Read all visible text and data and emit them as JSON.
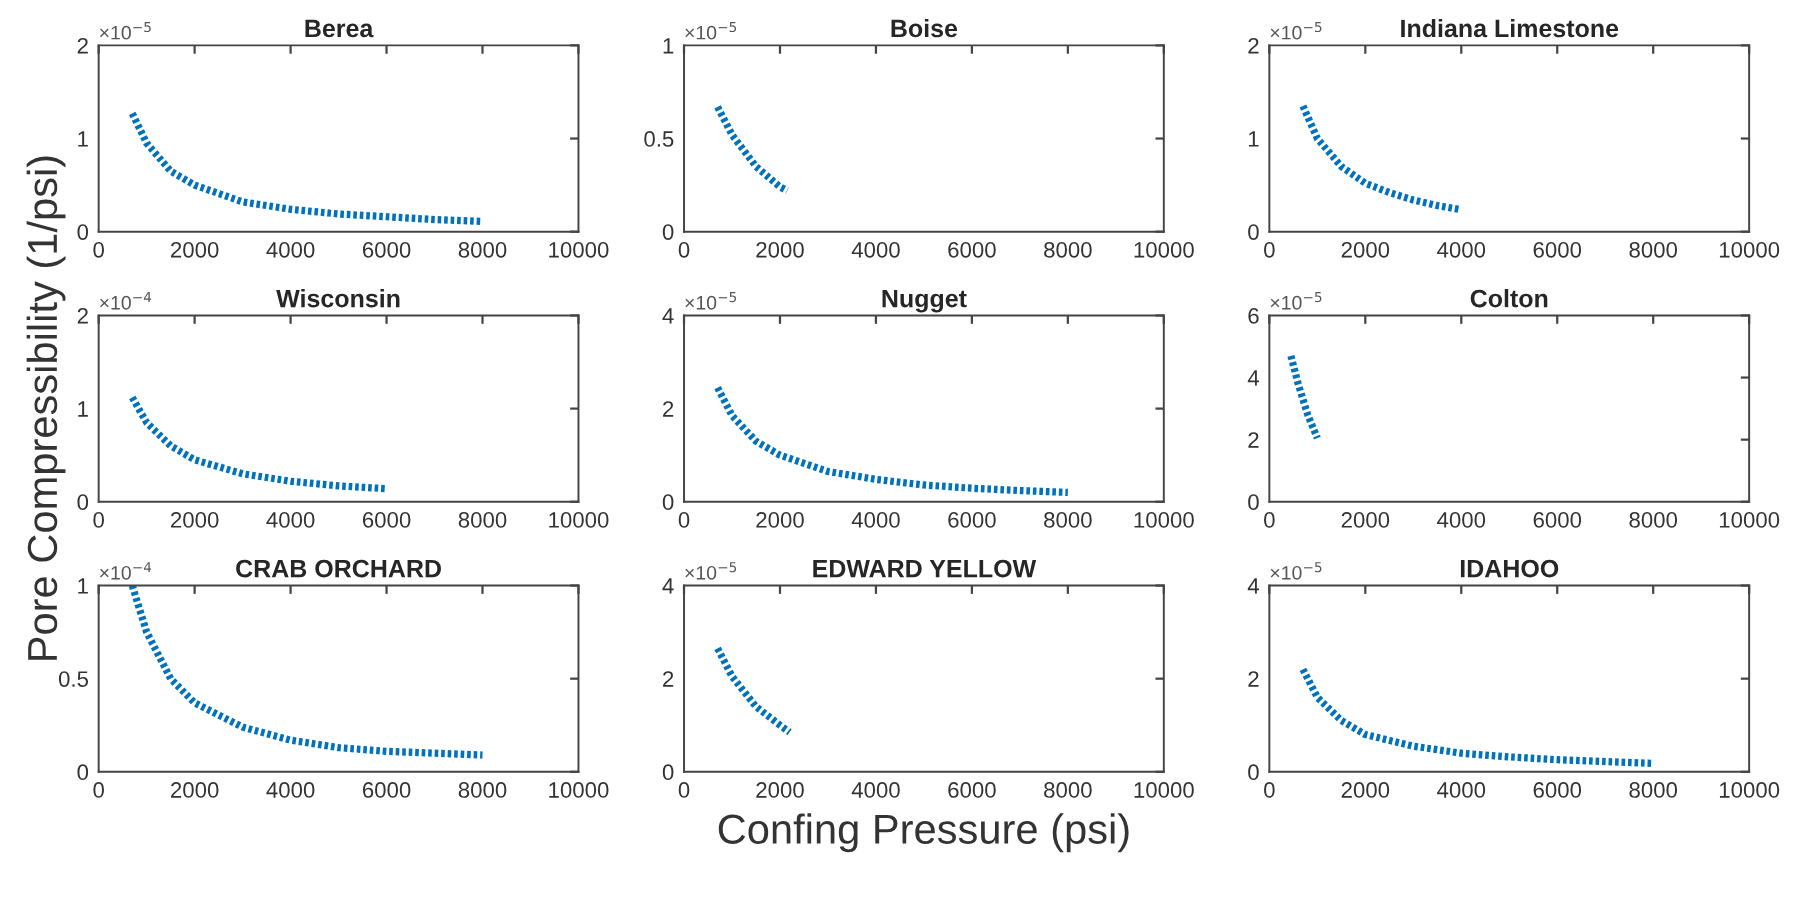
{
  "chart_data": [
    {
      "type": "line",
      "title": "Berea",
      "annotations": [
        "×10$^{−5}$"
      ],
      "xlim": [
        0,
        10000
      ],
      "xticks": [
        0,
        2000,
        4000,
        6000,
        8000,
        10000
      ],
      "ylim": [
        0,
        2
      ],
      "yticks": [
        0,
        1,
        2
      ],
      "line_style": "dotted",
      "grid": false,
      "series": [
        {
          "color": "#0072bd",
          "x": [
            700,
            1000,
            1500,
            2000,
            3000,
            4000,
            5000,
            6000,
            7000,
            8000
          ],
          "values": [
            1.27,
            0.95,
            0.65,
            0.5,
            0.32,
            0.24,
            0.19,
            0.16,
            0.13,
            0.11
          ]
        }
      ]
    },
    {
      "type": "line",
      "title": "Boise",
      "annotations": [
        "×10$^{−5}$"
      ],
      "xlim": [
        0,
        10000
      ],
      "xticks": [
        0,
        2000,
        4000,
        6000,
        8000,
        10000
      ],
      "ylim": [
        0,
        1
      ],
      "yticks": [
        0,
        0.5,
        1
      ],
      "line_style": "dotted",
      "grid": false,
      "series": [
        {
          "color": "#0072bd",
          "x": [
            700,
            1000,
            1500,
            2000,
            2150
          ],
          "values": [
            0.67,
            0.52,
            0.35,
            0.24,
            0.22
          ]
        }
      ]
    },
    {
      "type": "line",
      "title": "Indiana Limestone",
      "annotations": [
        "×10$^{−5}$"
      ],
      "xlim": [
        0,
        10000
      ],
      "xticks": [
        0,
        2000,
        4000,
        6000,
        8000,
        10000
      ],
      "ylim": [
        0,
        2
      ],
      "yticks": [
        0,
        1,
        2
      ],
      "line_style": "dotted",
      "grid": false,
      "series": [
        {
          "color": "#0072bd",
          "x": [
            700,
            1000,
            1500,
            2000,
            2500,
            3000,
            3500,
            3950
          ],
          "values": [
            1.35,
            1.0,
            0.7,
            0.52,
            0.42,
            0.34,
            0.28,
            0.24
          ]
        }
      ]
    },
    {
      "type": "line",
      "title": "Wisconsin",
      "ylabel": "Pore Compressibility (1/psi)",
      "annotations": [
        "×10$^{−4}$"
      ],
      "xlim": [
        0,
        10000
      ],
      "xticks": [
        0,
        2000,
        4000,
        6000,
        8000,
        10000
      ],
      "ylim": [
        0,
        2
      ],
      "yticks": [
        0,
        1,
        2
      ],
      "line_style": "dotted",
      "grid": false,
      "series": [
        {
          "color": "#0072bd",
          "x": [
            700,
            1000,
            1500,
            2000,
            3000,
            4000,
            5000,
            6000
          ],
          "values": [
            1.12,
            0.85,
            0.6,
            0.45,
            0.3,
            0.22,
            0.17,
            0.14
          ]
        }
      ]
    },
    {
      "type": "line",
      "title": "Nugget",
      "annotations": [
        "×10$^{−5}$"
      ],
      "xlim": [
        0,
        10000
      ],
      "xticks": [
        0,
        2000,
        4000,
        6000,
        8000,
        10000
      ],
      "ylim": [
        0,
        4
      ],
      "yticks": [
        0,
        2,
        4
      ],
      "line_style": "dotted",
      "grid": false,
      "series": [
        {
          "color": "#0072bd",
          "x": [
            700,
            1000,
            1500,
            2000,
            3000,
            4000,
            5000,
            6000,
            7000,
            8000
          ],
          "values": [
            2.45,
            1.85,
            1.3,
            1.0,
            0.65,
            0.48,
            0.36,
            0.29,
            0.24,
            0.2
          ]
        }
      ]
    },
    {
      "type": "line",
      "title": "Colton",
      "annotations": [
        "×10$^{−5}$"
      ],
      "xlim": [
        0,
        10000
      ],
      "xticks": [
        0,
        2000,
        4000,
        6000,
        8000,
        10000
      ],
      "ylim": [
        0,
        6
      ],
      "yticks": [
        0,
        2,
        4,
        6
      ],
      "line_style": "dotted",
      "grid": false,
      "series": [
        {
          "color": "#0072bd",
          "x": [
            450,
            600,
            800,
            1000
          ],
          "values": [
            4.7,
            3.8,
            2.8,
            2.05
          ]
        }
      ]
    },
    {
      "type": "line",
      "title": "CRAB ORCHARD",
      "annotations": [
        "×10$^{−4}$"
      ],
      "xlim": [
        0,
        10000
      ],
      "xticks": [
        0,
        2000,
        4000,
        6000,
        8000,
        10000
      ],
      "ylim": [
        0,
        1
      ],
      "yticks": [
        0,
        0.5,
        1
      ],
      "line_style": "dotted",
      "grid": false,
      "series": [
        {
          "color": "#0072bd",
          "x": [
            700,
            1000,
            1500,
            2000,
            3000,
            4000,
            5000,
            6000,
            7000,
            8000
          ],
          "values": [
            1.0,
            0.75,
            0.5,
            0.37,
            0.24,
            0.17,
            0.13,
            0.11,
            0.1,
            0.09
          ]
        }
      ]
    },
    {
      "type": "line",
      "title": "EDWARD YELLOW",
      "xlabel": "Confing Pressure (psi)",
      "annotations": [
        "×10$^{−5}$"
      ],
      "xlim": [
        0,
        10000
      ],
      "xticks": [
        0,
        2000,
        4000,
        6000,
        8000,
        10000
      ],
      "ylim": [
        0,
        4
      ],
      "yticks": [
        0,
        2,
        4
      ],
      "line_style": "dotted",
      "grid": false,
      "series": [
        {
          "color": "#0072bd",
          "x": [
            700,
            1000,
            1500,
            2000,
            2200
          ],
          "values": [
            2.65,
            2.05,
            1.4,
            1.0,
            0.85
          ]
        }
      ]
    },
    {
      "type": "line",
      "title": "IDAHOO",
      "annotations": [
        "×10$^{−5}$"
      ],
      "xlim": [
        0,
        10000
      ],
      "xticks": [
        0,
        2000,
        4000,
        6000,
        8000,
        10000
      ],
      "ylim": [
        0,
        4
      ],
      "yticks": [
        0,
        2,
        4
      ],
      "line_style": "dotted",
      "grid": false,
      "series": [
        {
          "color": "#0072bd",
          "x": [
            700,
            1000,
            1500,
            2000,
            3000,
            4000,
            5000,
            6000,
            7000,
            8000
          ],
          "values": [
            2.2,
            1.6,
            1.1,
            0.8,
            0.55,
            0.4,
            0.32,
            0.26,
            0.22,
            0.18
          ]
        }
      ]
    }
  ]
}
